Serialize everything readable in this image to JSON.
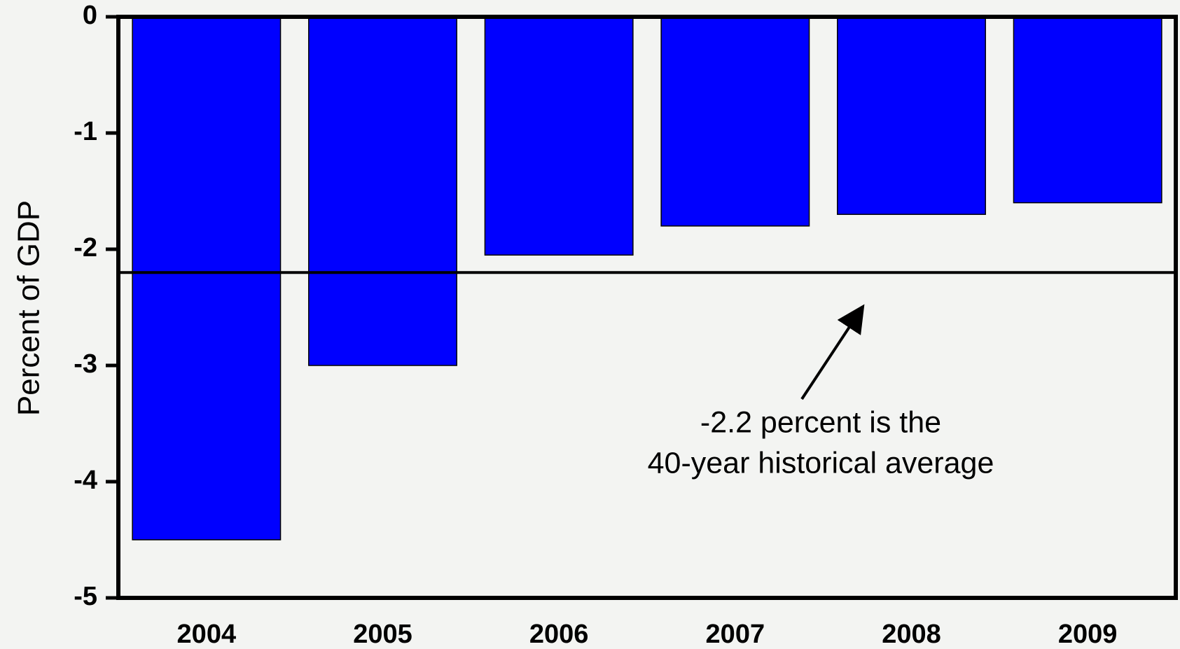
{
  "chart_data": {
    "type": "bar",
    "y_label": "Percent of GDP",
    "categories": [
      "2004",
      "2005",
      "2006",
      "2007",
      "2008",
      "2009"
    ],
    "values": [
      -4.5,
      -3.0,
      -2.05,
      -1.8,
      -1.7,
      -1.6
    ],
    "color": "#0000ff",
    "ylim": [
      -5,
      0
    ],
    "yticks": [
      -5,
      -4,
      -3,
      -2,
      -1,
      0
    ],
    "reference_line": -2.2,
    "annotation": [
      "-2.2 percent is the",
      "40-year historical average"
    ]
  }
}
